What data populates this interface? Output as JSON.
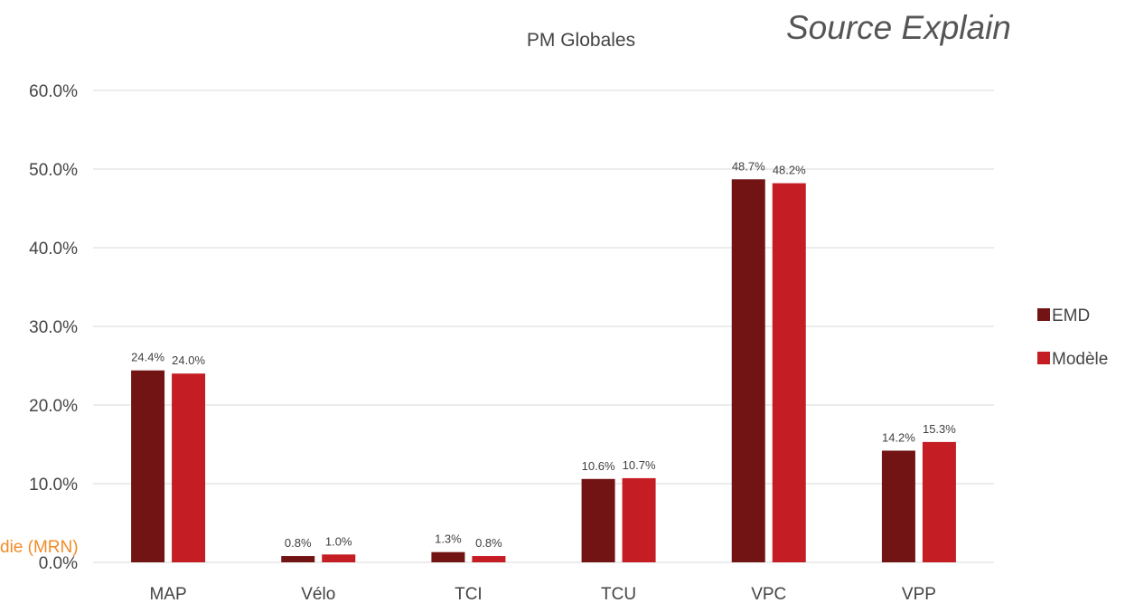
{
  "source_label": "Source Explain",
  "corner_note": "die (MRN)",
  "chart_data": {
    "type": "bar",
    "title": "PM Globales",
    "xlabel": "",
    "ylabel": "",
    "categories": [
      "MAP",
      "Vélo",
      "TCI",
      "TCU",
      "VPC",
      "VPP"
    ],
    "series": [
      {
        "name": "EMD",
        "color": "#731414",
        "values": [
          24.4,
          0.8,
          1.3,
          10.6,
          48.7,
          14.2
        ],
        "labels": [
          "24.4%",
          "0.8%",
          "1.3%",
          "10.6%",
          "48.7%",
          "14.2%"
        ]
      },
      {
        "name": "Modèle",
        "color": "#c41e24",
        "values": [
          24.0,
          1.0,
          0.8,
          10.7,
          48.2,
          15.3
        ],
        "labels": [
          "24.0%",
          "1.0%",
          "0.8%",
          "10.7%",
          "48.2%",
          "15.3%"
        ]
      }
    ],
    "ylim": [
      0,
      60
    ],
    "yticks": [
      0,
      10,
      20,
      30,
      40,
      50,
      60
    ],
    "ytick_labels": [
      "0.0%",
      "10.0%",
      "20.0%",
      "30.0%",
      "40.0%",
      "50.0%",
      "60.0%"
    ],
    "grid": true,
    "legend_position": "right"
  }
}
